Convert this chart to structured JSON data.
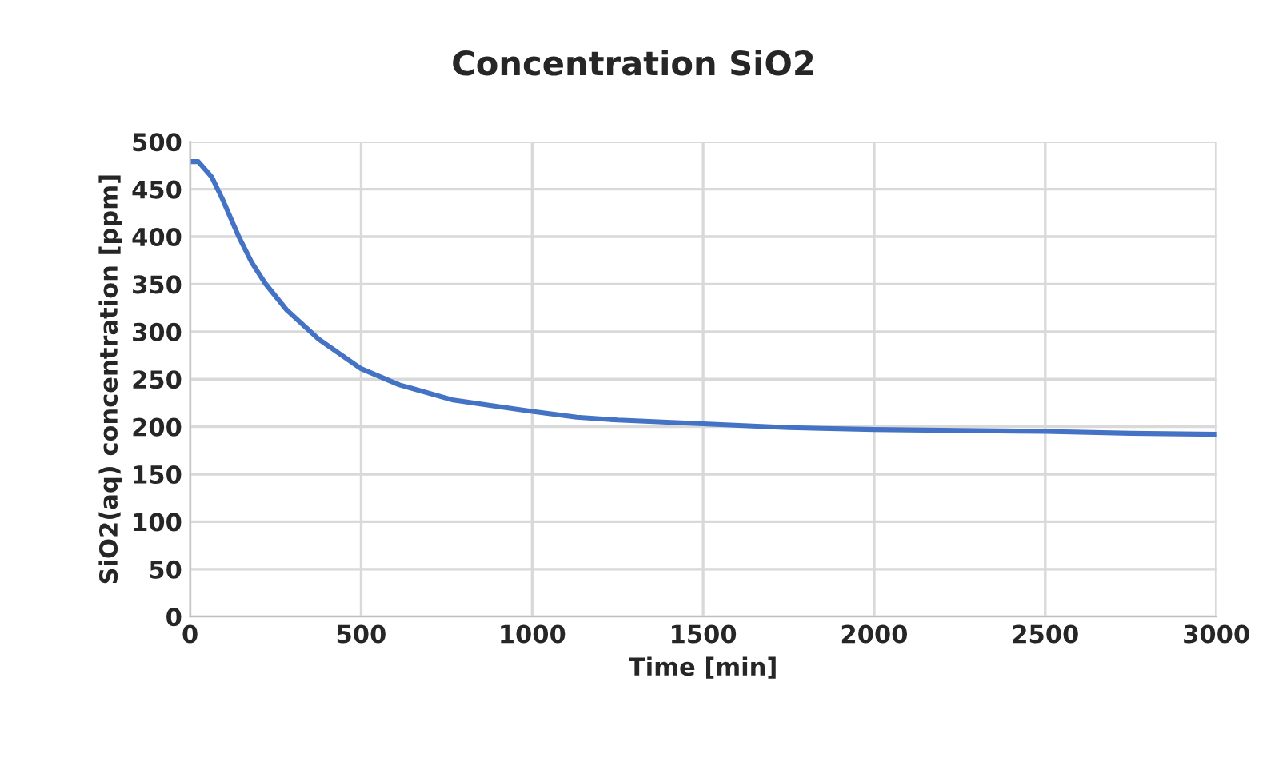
{
  "chart_data": {
    "type": "line",
    "title": "Concentration SiO2",
    "xlabel": "Time [min]",
    "ylabel": "SiO2(aq) concentration [ppm]",
    "series": [
      {
        "color": "#4472c4",
        "x": [
          0,
          24,
          63,
          94,
          141,
          180,
          219,
          282,
          376,
          500,
          612,
          769,
          1000,
          1130,
          1250,
          1500,
          1750,
          2000,
          2250,
          2500,
          2750,
          3000
        ],
        "values": [
          479,
          479,
          463,
          440,
          401,
          373,
          351,
          323,
          292,
          261,
          244,
          228,
          216,
          210,
          207,
          203,
          199,
          197,
          196,
          195,
          193,
          192
        ]
      }
    ],
    "xlim": [
      0,
      3000
    ],
    "xticks": [
      0,
      500,
      1000,
      1500,
      2000,
      2500,
      3000
    ],
    "ylim": [
      0,
      500
    ],
    "yticks": [
      0,
      50,
      100,
      150,
      200,
      250,
      300,
      350,
      400,
      450,
      500
    ],
    "grid": true,
    "marker": "none",
    "line_style": "solid"
  }
}
